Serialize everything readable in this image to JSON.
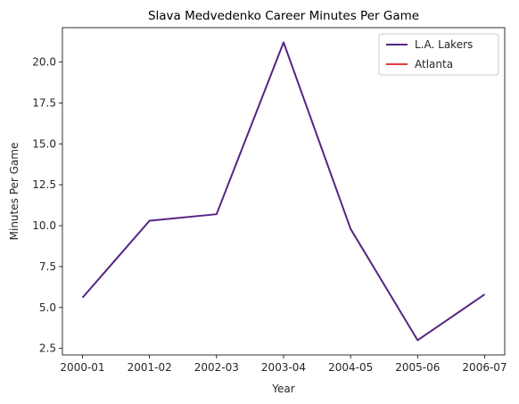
{
  "chart_data": {
    "type": "line",
    "title": "Slava Medvedenko Career Minutes Per Game",
    "xlabel": "Year",
    "ylabel": "Minutes Per Game",
    "categories": [
      "2000-01",
      "2001-02",
      "2002-03",
      "2003-04",
      "2004-05",
      "2005-06",
      "2006-07"
    ],
    "yticks": [
      "2.5",
      "5.0",
      "7.5",
      "10.0",
      "12.5",
      "15.0",
      "17.5",
      "20.0"
    ],
    "ylim": [
      2.1,
      22.1
    ],
    "grid": false,
    "legend_position": "upper-right",
    "series": [
      {
        "name": "L.A. Lakers",
        "color": "#552583",
        "values": [
          5.6,
          10.3,
          10.7,
          21.2,
          9.8,
          3.0,
          5.8
        ]
      },
      {
        "name": "Atlanta",
        "color": "#E03A3E",
        "values": [
          null,
          null,
          null,
          null,
          null,
          null,
          null
        ]
      }
    ]
  }
}
